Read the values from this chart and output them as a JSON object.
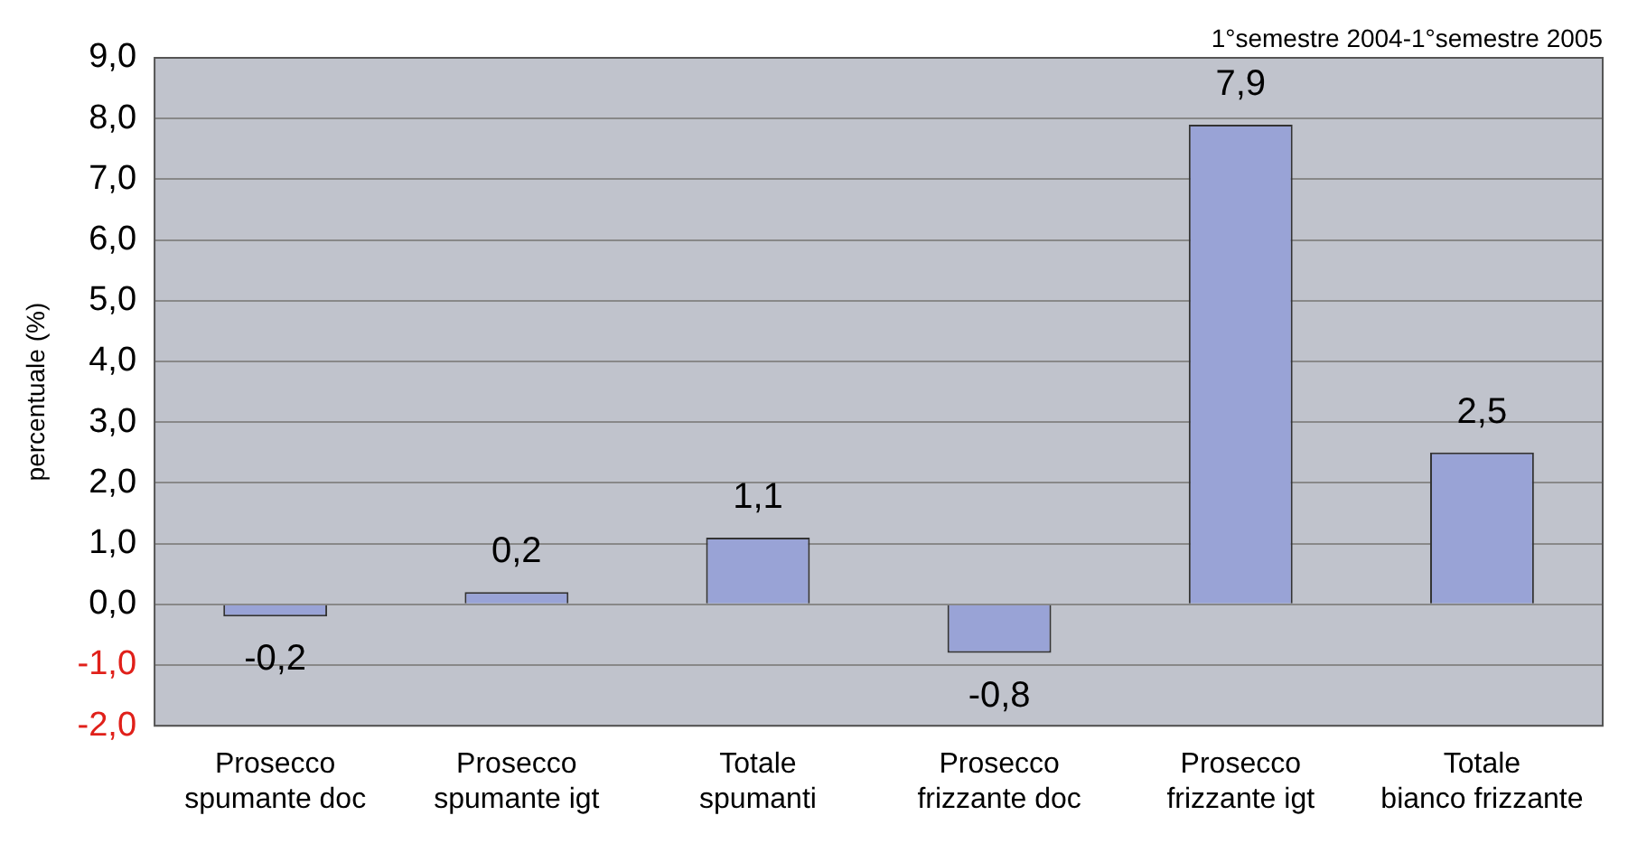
{
  "chart_data": {
    "type": "bar",
    "ylabel": "percentuale (%)",
    "annotations": [
      "1°semestre 2004-1°semestre 2005"
    ],
    "categories": [
      "Prosecco spumante doc",
      "Prosecco spumante igt",
      "Totale spumanti",
      "Prosecco frizzante doc",
      "Prosecco frizzante igt",
      "Totale bianco frizzante"
    ],
    "values": [
      -0.2,
      0.2,
      1.1,
      -0.8,
      7.9,
      2.5
    ],
    "color": "#99a3d6",
    "ylim": [
      -2,
      9
    ],
    "yticks": [
      {
        "value": -2,
        "label": "-2,0"
      },
      {
        "value": -1,
        "label": "-1,0"
      },
      {
        "value": 0,
        "label": "0,0"
      },
      {
        "value": 1,
        "label": "1,0"
      },
      {
        "value": 2,
        "label": "2,0"
      },
      {
        "value": 3,
        "label": "3,0"
      },
      {
        "value": 4,
        "label": "4,0"
      },
      {
        "value": 5,
        "label": "5,0"
      },
      {
        "value": 6,
        "label": "6,0"
      },
      {
        "value": 7,
        "label": "7,0"
      },
      {
        "value": 8,
        "label": "8,0"
      },
      {
        "value": 9,
        "label": "9,0"
      }
    ],
    "grid": "y",
    "value_labels": [
      "-0,2",
      "0,2",
      "1,1",
      "-0,8",
      "7,9",
      "2,5"
    ]
  }
}
